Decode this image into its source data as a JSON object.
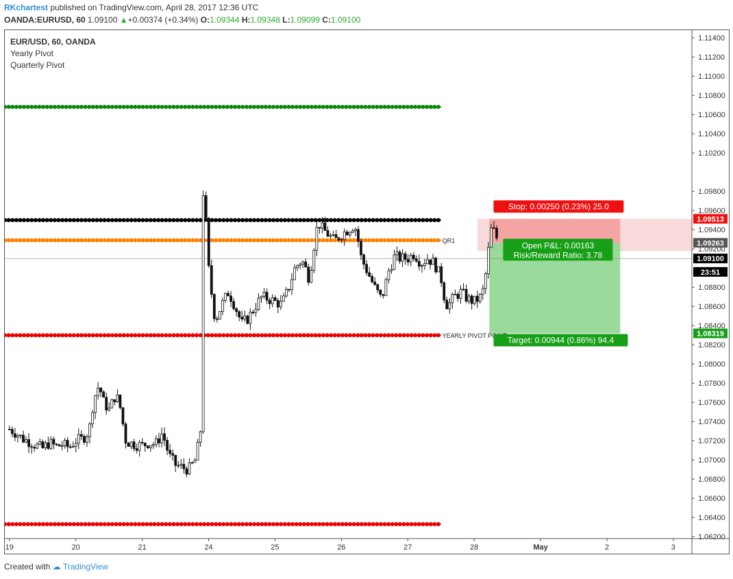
{
  "header": {
    "author": "RKchartest",
    "published_text": "published on TradingView.com, April 28, 2017 12:36 UTC",
    "symbol": "OANDA:EURUSD, 60",
    "last": "1.09100",
    "change": "+0.00374 (+0.34%)",
    "open_label": "O:",
    "open": "1.09344",
    "high_label": "H:",
    "high": "1.09348",
    "low_label": "L:",
    "low": "1.09099",
    "close_label": "C:",
    "close": "1.09100"
  },
  "legend": {
    "title": "EUR/USD, 60, OANDA",
    "study1": "Yearly Pivot",
    "study2": "Quarterly Pivot"
  },
  "footer": {
    "created": "Created with",
    "brand": "TradingView"
  },
  "colors": {
    "green_level": "#0a8a0a",
    "black_level": "#000000",
    "orange_level": "#ff8000",
    "red_level": "#ee0000",
    "stop_zone": "#f49a9a",
    "target_zone": "#8fd68f",
    "stop_label": "#ee1111",
    "target_label": "#17a017"
  },
  "chart_data": {
    "type": "candlestick",
    "ylim": [
      1.0618,
      1.1148
    ],
    "y_ticks": [
      "1.11400",
      "1.11200",
      "1.11000",
      "1.10800",
      "1.10600",
      "1.10400",
      "1.10200",
      "1.09800",
      "1.09600",
      "1.09400",
      "1.09200",
      "1.08800",
      "1.08600",
      "1.08400",
      "1.08200",
      "1.08000",
      "1.07800",
      "1.07600",
      "1.07400",
      "1.07200",
      "1.07000",
      "1.06800",
      "1.06600",
      "1.06400",
      "1.06200"
    ],
    "y_tick_values": [
      1.114,
      1.112,
      1.11,
      1.108,
      1.106,
      1.104,
      1.102,
      1.098,
      1.096,
      1.094,
      1.092,
      1.088,
      1.086,
      1.084,
      1.082,
      1.08,
      1.078,
      1.076,
      1.074,
      1.072,
      1.07,
      1.068,
      1.066,
      1.064,
      1.062
    ],
    "x_ticks": [
      {
        "label": "19",
        "day": 0.0
      },
      {
        "label": "20",
        "day": 1.0
      },
      {
        "label": "21",
        "day": 2.0
      },
      {
        "label": "24",
        "day": 3.0
      },
      {
        "label": "25",
        "day": 4.0
      },
      {
        "label": "26",
        "day": 5.0
      },
      {
        "label": "27",
        "day": 6.0
      },
      {
        "label": "28",
        "day": 7.0
      },
      {
        "label": "May",
        "day": 8.0
      },
      {
        "label": "2",
        "day": 9.0
      },
      {
        "label": "3",
        "day": 10.0
      }
    ],
    "x_range_days": [
      -0.07,
      10.28
    ],
    "levels": [
      {
        "price": 1.1068,
        "color": "#0a8a0a",
        "start_day": -0.07,
        "end_day": 6.5
      },
      {
        "price": 1.095,
        "color": "#000000",
        "start_day": -0.07,
        "end_day": 6.5
      },
      {
        "price": 1.0929,
        "color": "#ff8000",
        "start_day": -0.07,
        "end_day": 6.5
      },
      {
        "price": 1.083,
        "color": "#ee0000",
        "start_day": -0.07,
        "end_day": 6.5
      },
      {
        "price": 1.0633,
        "color": "#ee0000",
        "start_day": -0.07,
        "end_day": 6.5
      }
    ],
    "level_labels": [
      {
        "text": "QR1",
        "price": 1.0929
      },
      {
        "text": "YEARLY PIVOT POINT",
        "price": 1.083
      }
    ],
    "position": {
      "entry": 1.09263,
      "stop": 1.09513,
      "target": 1.08319,
      "start_day": 7.23,
      "end_day": 9.2,
      "highlight_start_day": 7.05,
      "highlight_end_day": 10.28,
      "stop_label": "Stop: 0.00250 (0.23%) 25.0",
      "target_label": "Target: 0.00944 (0.86%) 94.4",
      "pnl_label": "Open P&L: 0.00163",
      "rr_label": "Risk/Reward Ratio: 3.78"
    },
    "price_tags": [
      {
        "text": "1.09513",
        "price": 1.09513,
        "bg": "#ee1111",
        "fg": "#ffffff"
      },
      {
        "text": "1.09263",
        "price": 1.09263,
        "bg": "#555555",
        "fg": "#ffffff"
      },
      {
        "text": "1.09100",
        "price": 1.091,
        "bg": "#000000",
        "fg": "#ffffff"
      },
      {
        "text": "23:51",
        "price": 1.0896,
        "bg": "#000000",
        "fg": "#ffffff"
      },
      {
        "text": "1.08319",
        "price": 1.08319,
        "bg": "#17a017",
        "fg": "#ffffff"
      }
    ],
    "last_price": 1.091,
    "series": [
      {
        "name": "EUR/USD",
        "anchors": [
          [
            0.0,
            1.0732
          ],
          [
            0.1,
            1.0728
          ],
          [
            0.2,
            1.0722
          ],
          [
            0.3,
            1.0719
          ],
          [
            0.4,
            1.0715
          ],
          [
            0.5,
            1.0712
          ],
          [
            0.6,
            1.0718
          ],
          [
            0.7,
            1.0714
          ],
          [
            0.8,
            1.0716
          ],
          [
            0.9,
            1.0713
          ],
          [
            1.0,
            1.072
          ],
          [
            1.1,
            1.0722
          ],
          [
            1.2,
            1.073
          ],
          [
            1.25,
            1.0755
          ],
          [
            1.3,
            1.077
          ],
          [
            1.35,
            1.0778
          ],
          [
            1.42,
            1.076
          ],
          [
            1.5,
            1.0752
          ],
          [
            1.6,
            1.0768
          ],
          [
            1.65,
            1.076
          ],
          [
            1.7,
            1.0745
          ],
          [
            1.73,
            1.0722
          ],
          [
            1.8,
            1.0718
          ],
          [
            1.9,
            1.0716
          ],
          [
            2.0,
            1.0715
          ],
          [
            2.1,
            1.0718
          ],
          [
            2.2,
            1.0716
          ],
          [
            2.3,
            1.0728
          ],
          [
            2.35,
            1.0718
          ],
          [
            2.4,
            1.0705
          ],
          [
            2.5,
            1.0695
          ],
          [
            2.6,
            1.0692
          ],
          [
            2.7,
            1.069
          ],
          [
            2.8,
            1.07
          ],
          [
            2.85,
            1.0718
          ],
          [
            2.88,
            1.0732
          ],
          [
            2.92,
            1.0985
          ],
          [
            2.95,
            1.096
          ],
          [
            3.0,
            1.09
          ],
          [
            3.05,
            1.087
          ],
          [
            3.1,
            1.0845
          ],
          [
            3.2,
            1.0862
          ],
          [
            3.3,
            1.0875
          ],
          [
            3.4,
            1.086
          ],
          [
            3.5,
            1.0842
          ],
          [
            3.6,
            1.0848
          ],
          [
            3.7,
            1.086
          ],
          [
            3.8,
            1.087
          ],
          [
            3.9,
            1.0868
          ],
          [
            4.0,
            1.0865
          ],
          [
            4.1,
            1.0862
          ],
          [
            4.2,
            1.0878
          ],
          [
            4.3,
            1.09
          ],
          [
            4.4,
            1.0908
          ],
          [
            4.45,
            1.0902
          ],
          [
            4.5,
            1.089
          ],
          [
            4.55,
            1.0905
          ],
          [
            4.6,
            1.093
          ],
          [
            4.65,
            1.0948
          ],
          [
            4.7,
            1.0942
          ],
          [
            4.8,
            1.0935
          ],
          [
            4.9,
            1.0928
          ],
          [
            5.0,
            1.0935
          ],
          [
            5.1,
            1.094
          ],
          [
            5.2,
            1.0945
          ],
          [
            5.25,
            1.093
          ],
          [
            5.3,
            1.091
          ],
          [
            5.4,
            1.0895
          ],
          [
            5.5,
            1.088
          ],
          [
            5.6,
            1.0868
          ],
          [
            5.65,
            1.0878
          ],
          [
            5.7,
            1.0895
          ],
          [
            5.8,
            1.0912
          ],
          [
            5.9,
            1.091
          ],
          [
            6.0,
            1.091
          ],
          [
            6.1,
            1.0915
          ],
          [
            6.2,
            1.0905
          ],
          [
            6.3,
            1.091
          ],
          [
            6.4,
            1.0905
          ],
          [
            6.5,
            1.089
          ],
          [
            6.55,
            1.087
          ],
          [
            6.6,
            1.086
          ],
          [
            6.7,
            1.087
          ],
          [
            6.8,
            1.0875
          ],
          [
            6.9,
            1.0868
          ],
          [
            7.0,
            1.0865
          ],
          [
            7.1,
            1.087
          ],
          [
            7.15,
            1.088
          ],
          [
            7.2,
            1.091
          ],
          [
            7.25,
            1.094
          ],
          [
            7.3,
            1.0938
          ],
          [
            7.35,
            1.093
          ],
          [
            7.38,
            1.091
          ]
        ]
      }
    ]
  }
}
